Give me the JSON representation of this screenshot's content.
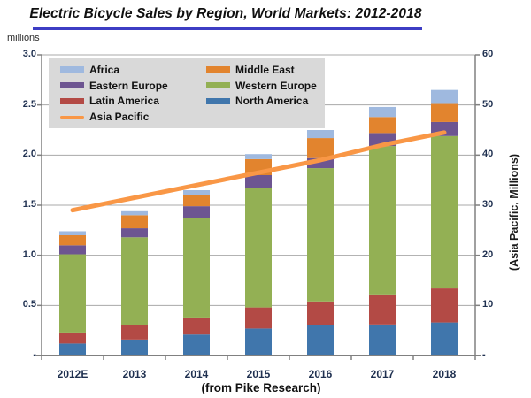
{
  "title": "Electric Bicycle Sales by Region, World Markets: 2012-2018",
  "left_axis_unit": "millions",
  "right_axis_label": "(Asia Pacific, Millions)",
  "caption": "(from Pike Research)",
  "colors": {
    "title_underline": "#3D3DC4",
    "legend_bg": "#D9D9D9",
    "grid": "#A8A8A8",
    "frame": "#808080",
    "axis_text": "#1F3050"
  },
  "chart_data": {
    "type": "bar",
    "subtype": "stacked-bars-with-secondary-axis-line",
    "title": "Electric Bicycle Sales by Region, World Markets: 2012-2018",
    "categories": [
      "2012E",
      "2013",
      "2014",
      "2015",
      "2016",
      "2017",
      "2018"
    ],
    "series": [
      {
        "name": "North America",
        "type": "bar",
        "axis": "left",
        "color": "#4076AC",
        "values": [
          0.12,
          0.16,
          0.21,
          0.27,
          0.3,
          0.31,
          0.33
        ]
      },
      {
        "name": "Latin America",
        "type": "bar",
        "axis": "left",
        "color": "#B34A45",
        "values": [
          0.11,
          0.14,
          0.17,
          0.21,
          0.24,
          0.3,
          0.34
        ]
      },
      {
        "name": "Western Europe",
        "type": "bar",
        "axis": "left",
        "color": "#93B054",
        "values": [
          0.78,
          0.88,
          0.99,
          1.19,
          1.33,
          1.48,
          1.52
        ]
      },
      {
        "name": "Eastern Europe",
        "type": "bar",
        "axis": "left",
        "color": "#6D5591",
        "values": [
          0.09,
          0.09,
          0.12,
          0.13,
          0.1,
          0.13,
          0.14
        ]
      },
      {
        "name": "Middle East",
        "type": "bar",
        "axis": "left",
        "color": "#E2842E",
        "values": [
          0.1,
          0.13,
          0.11,
          0.16,
          0.2,
          0.16,
          0.18
        ]
      },
      {
        "name": "Africa",
        "type": "bar",
        "axis": "left",
        "color": "#9FB9DF",
        "values": [
          0.04,
          0.04,
          0.05,
          0.05,
          0.08,
          0.1,
          0.14
        ]
      },
      {
        "name": "Asia Pacific",
        "type": "line",
        "axis": "right",
        "color": "#F99746",
        "values": [
          29,
          31.5,
          34,
          36.5,
          39,
          42,
          44.5
        ]
      }
    ],
    "left_axis": {
      "label": "millions",
      "min": 0,
      "max": 3.0,
      "tick_labels": [
        "3.0",
        "2.5",
        "2.0",
        "1.5",
        "1.0",
        "0.5",
        "-"
      ]
    },
    "right_axis": {
      "label": "(Asia Pacific, Millions)",
      "min": 0,
      "max": 60,
      "tick_labels": [
        "60",
        "50",
        "40",
        "30",
        "20",
        "10",
        "-"
      ]
    },
    "grid": true,
    "legend": {
      "position": "top-left",
      "columns": 2,
      "order": [
        "Africa",
        "Eastern Europe",
        "Latin America",
        "Asia Pacific",
        "Middle East",
        "Western Europe",
        "North America"
      ]
    },
    "xlabel": "",
    "ylabel": "millions"
  }
}
